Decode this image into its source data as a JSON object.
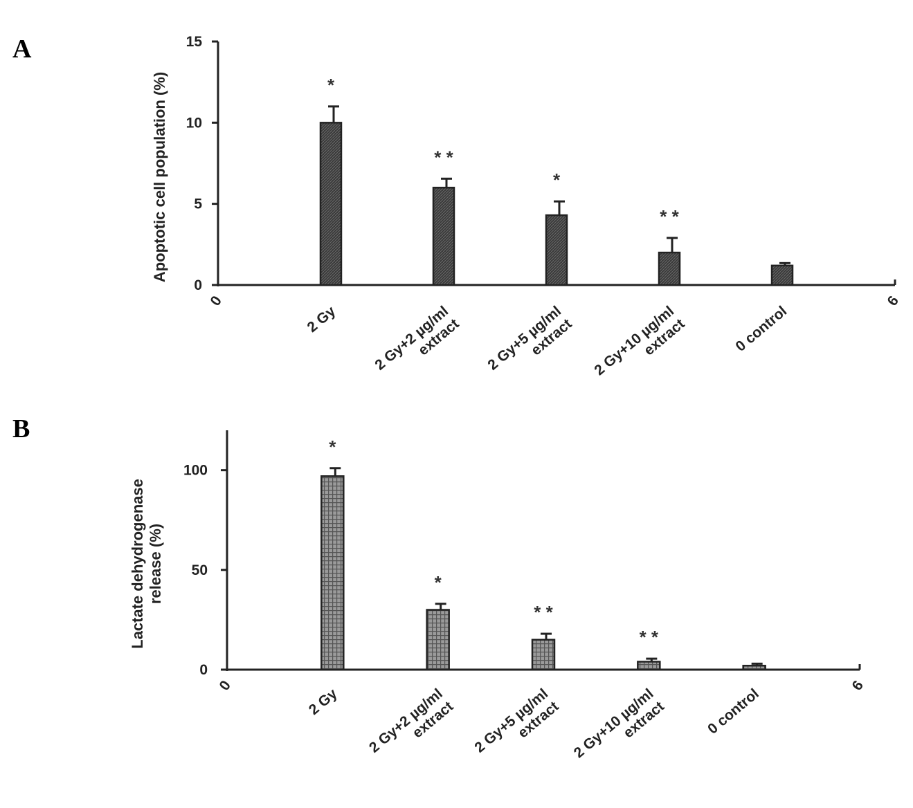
{
  "panels": [
    {
      "letter": "A",
      "ylabel": [
        "Apoptotic cell population (%)"
      ],
      "yticks": [
        "0",
        "5",
        "10",
        "15"
      ],
      "x_end_ticks": [
        "0",
        "6"
      ]
    },
    {
      "letter": "B",
      "ylabel": [
        "Lactate dehydrogenase",
        "release (%)"
      ],
      "yticks": [
        "0",
        "50",
        "100"
      ],
      "x_end_ticks": [
        "0",
        "6"
      ]
    }
  ],
  "chart_data": [
    {
      "type": "bar",
      "panel": "A",
      "ylabel": "Apoptotic cell population (%)",
      "ylim": [
        0,
        15
      ],
      "xlim": [
        0,
        6
      ],
      "yticks": [
        0,
        5,
        10,
        15
      ],
      "categories": [
        "2 Gy",
        "2 Gy+2 µg/ml extract",
        "2 Gy+5 µg/ml extract",
        "2 Gy+10 µg/ml extract",
        "0 control"
      ],
      "category_lines": [
        [
          "2 Gy"
        ],
        [
          "2 Gy+2 µg/ml",
          "extract"
        ],
        [
          "2 Gy+5 µg/ml",
          "extract"
        ],
        [
          "2 Gy+10 µg/ml",
          "extract"
        ],
        [
          "0 control"
        ]
      ],
      "values": [
        10.0,
        6.0,
        4.3,
        2.0,
        1.2
      ],
      "errors": [
        1.0,
        0.55,
        0.85,
        0.9,
        0.15
      ],
      "significance": [
        "*",
        "**",
        "*",
        "**",
        ""
      ],
      "bar_color": "#3a3a3a",
      "grid": false
    },
    {
      "type": "bar",
      "panel": "B",
      "ylabel": "Lactate dehydrogenase release (%)",
      "ylim": [
        0,
        120
      ],
      "xlim": [
        0,
        6
      ],
      "yticks": [
        0,
        50,
        100
      ],
      "categories": [
        "2 Gy",
        "2 Gy+2 µg/ml extract",
        "2 Gy+5 µg/ml extract",
        "2 Gy+10 µg/ml extract",
        "0 control"
      ],
      "category_lines": [
        [
          "2 Gy"
        ],
        [
          "2 Gy+2 µg/ml",
          "extract"
        ],
        [
          "2 Gy+5 µg/ml",
          "extract"
        ],
        [
          "2 Gy+10 µg/ml",
          "extract"
        ],
        [
          "0 control"
        ]
      ],
      "values": [
        97,
        30,
        15,
        4,
        2
      ],
      "errors": [
        4,
        3,
        3,
        1.5,
        1
      ],
      "significance": [
        "*",
        "*",
        "**",
        "**",
        ""
      ],
      "bar_color": "#555555",
      "grid": false
    }
  ]
}
